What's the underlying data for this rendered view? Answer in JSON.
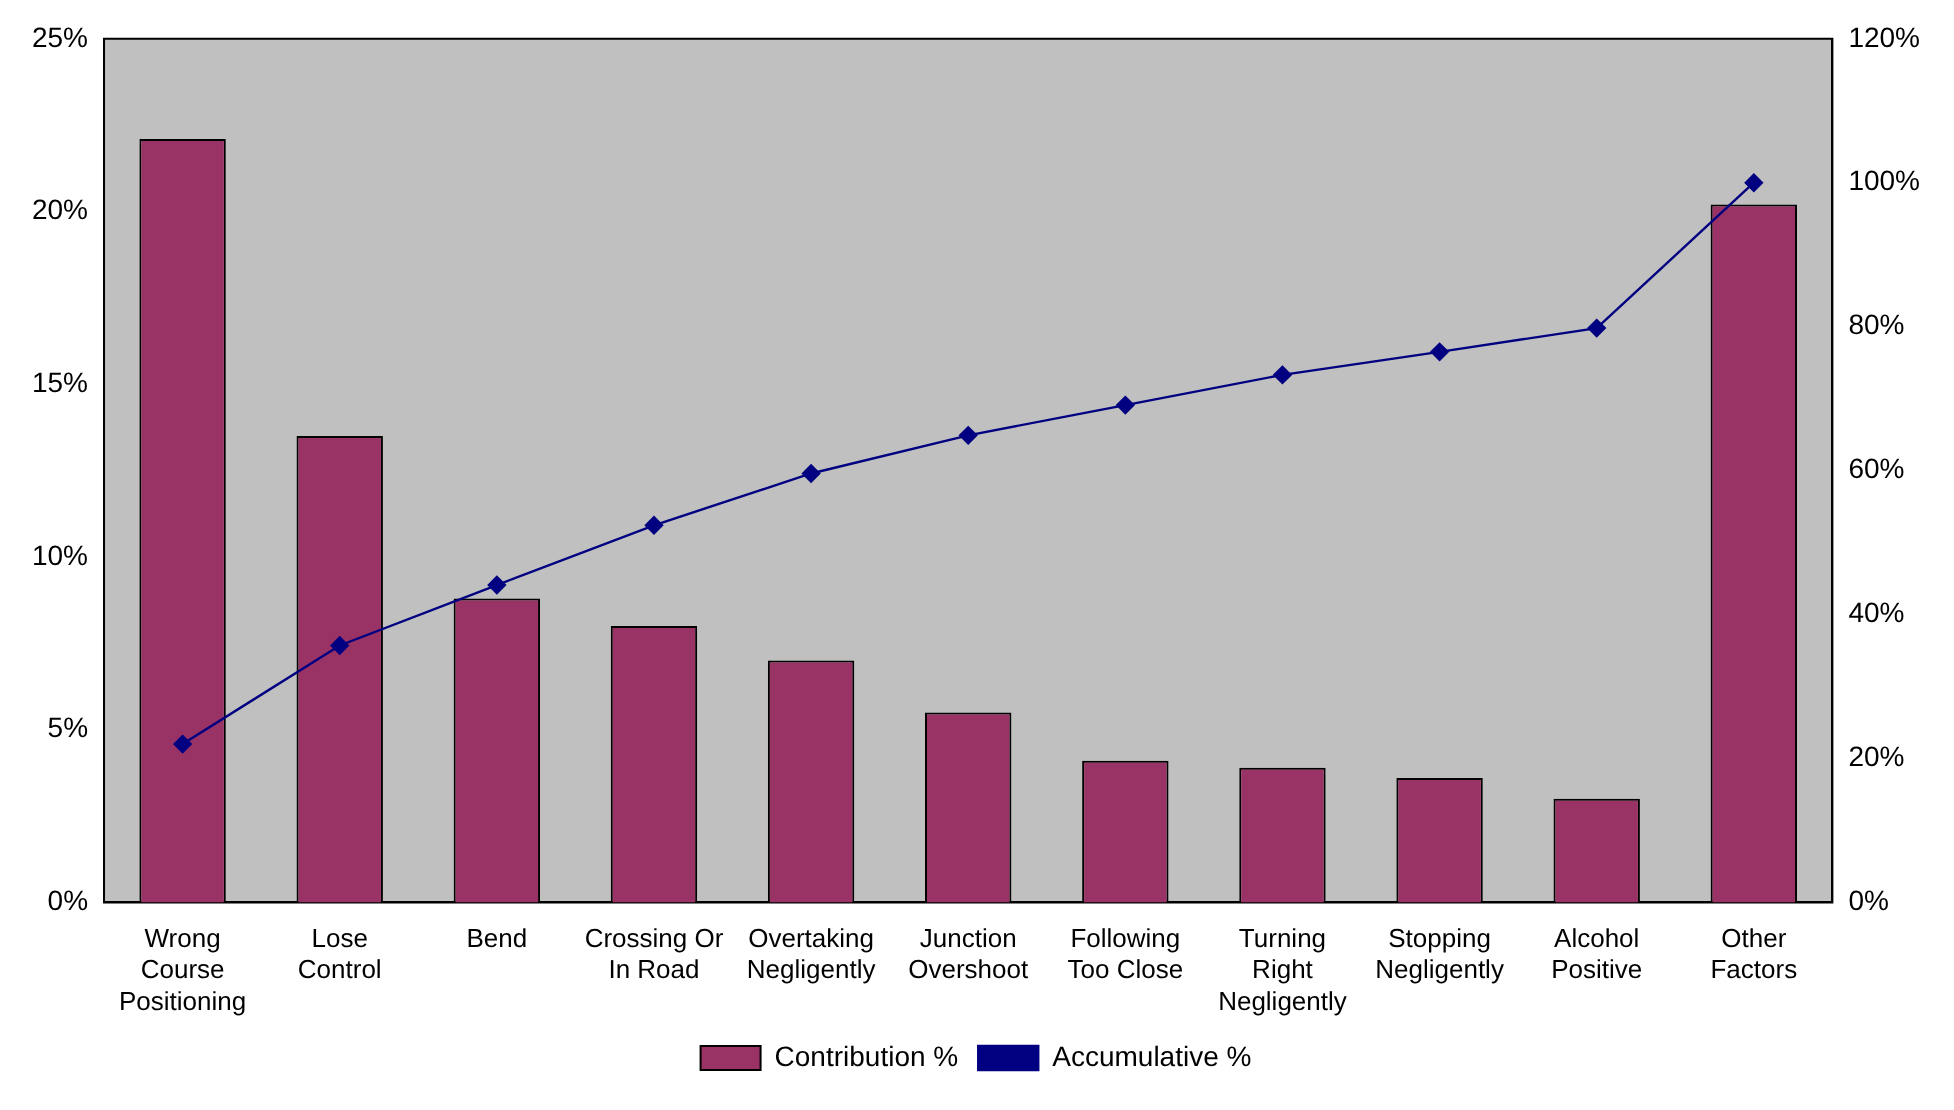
{
  "chart_data": {
    "type": "bar",
    "categories": [
      "Wrong Course Positioning",
      "Lose Control",
      "Bend",
      "Crossing Or In Road",
      "Overtaking Negligently",
      "Junction Overshoot",
      "Following Too Close",
      "Turning Right Negligently",
      "Stopping Negligently",
      "Alcohol Positive",
      "Other Factors"
    ],
    "series": [
      {
        "name": "Contribution %",
        "color": "#993366",
        "values": [
          22.1,
          13.5,
          8.8,
          8.0,
          7.0,
          5.5,
          4.1,
          3.9,
          3.6,
          3.0,
          20.2
        ]
      },
      {
        "name": "Accumulative %",
        "type": "line",
        "axis": "y2",
        "color": "#000080",
        "marker": "diamond",
        "values": [
          22.0,
          35.7,
          44.1,
          52.4,
          59.6,
          64.9,
          69.1,
          73.3,
          76.5,
          79.8,
          100
        ]
      }
    ],
    "ylim": [
      0,
      25
    ],
    "yticks": [
      {
        "value": 0,
        "label": "0%"
      },
      {
        "value": 5,
        "label": "5%"
      },
      {
        "value": 10,
        "label": "10%"
      },
      {
        "value": 15,
        "label": "15%"
      },
      {
        "value": 20,
        "label": "20%"
      },
      {
        "value": 25,
        "label": "25%"
      }
    ],
    "y2lim": [
      0,
      120
    ],
    "y2ticks": [
      {
        "value": 0,
        "label": "0%"
      },
      {
        "value": 20,
        "label": "20%"
      },
      {
        "value": 40,
        "label": "40%"
      },
      {
        "value": 60,
        "label": "60%"
      },
      {
        "value": 80,
        "label": "80%"
      },
      {
        "value": 100,
        "label": "100%"
      },
      {
        "value": 120,
        "label": "120%"
      }
    ],
    "grid": false,
    "legend": "bottom"
  }
}
